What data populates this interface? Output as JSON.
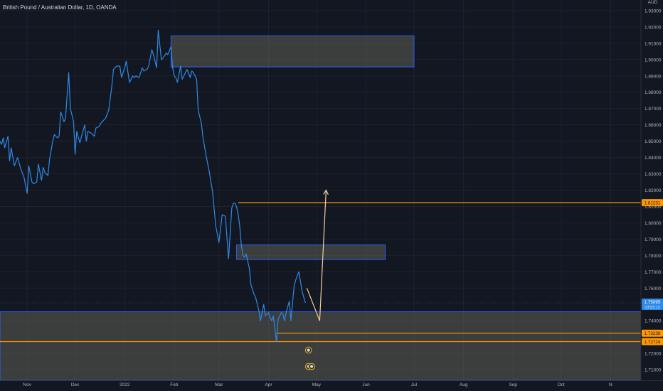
{
  "header": {
    "symbol_title": "British Pound / Australian Dollar, 1D, OANDA",
    "currency_label": "AUD"
  },
  "colors": {
    "background": "#131722",
    "grid": "#1e2230",
    "price_line": "#2f8ae5",
    "zone_border": "#2962ff",
    "zone_fill": "#8a8370",
    "level_line": "#ff9800",
    "projection_arrow": "#f0d29a",
    "axis_text": "#b2b5be",
    "current_price_bg": "#2f8ae5"
  },
  "chart_data": {
    "type": "line",
    "title": "British Pound / Australian Dollar, 1D, OANDA",
    "xlabel": "",
    "ylabel": "",
    "xlim": [
      "2021-10-15",
      "2022-11-20"
    ],
    "ylim": [
      1.7035,
      1.9365
    ],
    "x_ticks": [
      {
        "date": "2021-11-01",
        "label": "Nov"
      },
      {
        "date": "2021-12-01",
        "label": "Dec"
      },
      {
        "date": "2022-01-01",
        "label": "2022"
      },
      {
        "date": "2022-02-01",
        "label": "Feb"
      },
      {
        "date": "2022-03-01",
        "label": "Mar"
      },
      {
        "date": "2022-04-01",
        "label": "Apr"
      },
      {
        "date": "2022-05-01",
        "label": "May"
      },
      {
        "date": "2022-06-01",
        "label": "Jun"
      },
      {
        "date": "2022-07-01",
        "label": "Jul"
      },
      {
        "date": "2022-08-01",
        "label": "Aug"
      },
      {
        "date": "2022-09-01",
        "label": "Sep"
      },
      {
        "date": "2022-10-01",
        "label": "Oct"
      },
      {
        "date": "2022-11-01",
        "label": "N"
      }
    ],
    "y_ticks": [
      {
        "value": 1.93,
        "label": "1.93000"
      },
      {
        "value": 1.92,
        "label": "1.92000"
      },
      {
        "value": 1.91,
        "label": "1.91000"
      },
      {
        "value": 1.9,
        "label": "1.90000"
      },
      {
        "value": 1.89,
        "label": "1.89000"
      },
      {
        "value": 1.88,
        "label": "1.88000"
      },
      {
        "value": 1.87,
        "label": "1.87000"
      },
      {
        "value": 1.86,
        "label": "1.86000"
      },
      {
        "value": 1.85,
        "label": "1.85000"
      },
      {
        "value": 1.84,
        "label": "1.84000"
      },
      {
        "value": 1.83,
        "label": "1.83000"
      },
      {
        "value": 1.82,
        "label": "1.82000"
      },
      {
        "value": 1.81,
        "label": "1.81000"
      },
      {
        "value": 1.8,
        "label": "1.80000"
      },
      {
        "value": 1.79,
        "label": "1.79000"
      },
      {
        "value": 1.78,
        "label": "1.78000"
      },
      {
        "value": 1.77,
        "label": "1.77000"
      },
      {
        "value": 1.76,
        "label": "1.76000"
      },
      {
        "value": 1.74,
        "label": "1.74000"
      },
      {
        "value": 1.72,
        "label": "1.72000"
      },
      {
        "value": 1.71,
        "label": "1.71000"
      }
    ],
    "grid": true,
    "series": [
      {
        "x": [
          "2021-10-15",
          "2021-10-16",
          "2021-10-17",
          "2021-10-18",
          "2021-10-20",
          "2021-10-21",
          "2021-10-22",
          "2021-10-24",
          "2021-10-26",
          "2021-10-28",
          "2021-10-30",
          "2021-11-01",
          "2021-11-02",
          "2021-11-04",
          "2021-11-05",
          "2021-11-07",
          "2021-11-08",
          "2021-11-10",
          "2021-11-11",
          "2021-11-12",
          "2021-11-14",
          "2021-11-15",
          "2021-11-17",
          "2021-11-18",
          "2021-11-20",
          "2021-11-21",
          "2021-11-22",
          "2021-11-24",
          "2021-11-25",
          "2021-11-27",
          "2021-11-28",
          "2021-11-30",
          "2021-12-01",
          "2021-12-02",
          "2021-12-04",
          "2021-12-05",
          "2021-12-07",
          "2021-12-08",
          "2021-12-09",
          "2021-12-11",
          "2021-12-13",
          "2021-12-14",
          "2021-12-16",
          "2021-12-17",
          "2021-12-19",
          "2021-12-20",
          "2021-12-22",
          "2021-12-24",
          "2021-12-25",
          "2021-12-27",
          "2021-12-29",
          "2021-12-30",
          "2022-01-01",
          "2022-01-02",
          "2022-01-04",
          "2022-01-06",
          "2022-01-07",
          "2022-01-08",
          "2022-01-10",
          "2022-01-12",
          "2022-01-13",
          "2022-01-15",
          "2022-01-16",
          "2022-01-18",
          "2022-01-19",
          "2022-01-21",
          "2022-01-22",
          "2022-01-24",
          "2022-01-25",
          "2022-01-27",
          "2022-01-28",
          "2022-01-30",
          "2022-01-31",
          "2022-02-01",
          "2022-02-02",
          "2022-02-03",
          "2022-02-05",
          "2022-02-06",
          "2022-02-08",
          "2022-02-09",
          "2022-02-11",
          "2022-02-12",
          "2022-02-13",
          "2022-02-15",
          "2022-02-16",
          "2022-02-18",
          "2022-02-19",
          "2022-02-21",
          "2022-02-23",
          "2022-02-25",
          "2022-02-27",
          "2022-03-01",
          "2022-03-03",
          "2022-03-05",
          "2022-03-07",
          "2022-03-09",
          "2022-03-10",
          "2022-03-11",
          "2022-03-12",
          "2022-03-13",
          "2022-03-14",
          "2022-03-15",
          "2022-03-16",
          "2022-03-17",
          "2022-03-18",
          "2022-03-20",
          "2022-03-21",
          "2022-03-23",
          "2022-03-24",
          "2022-03-26",
          "2022-03-27",
          "2022-03-29",
          "2022-03-30",
          "2022-04-01",
          "2022-04-02",
          "2022-04-03",
          "2022-04-04",
          "2022-04-06",
          "2022-04-07",
          "2022-04-09",
          "2022-04-10",
          "2022-04-11",
          "2022-04-12",
          "2022-04-14",
          "2022-04-15",
          "2022-04-17",
          "2022-04-18",
          "2022-04-20",
          "2022-04-21",
          "2022-04-22",
          "2022-04-24"
        ],
        "values": [
          1.85,
          1.848,
          1.852,
          1.846,
          1.853,
          1.838,
          1.846,
          1.835,
          1.84,
          1.833,
          1.828,
          1.818,
          1.835,
          1.825,
          1.824,
          1.825,
          1.836,
          1.826,
          1.834,
          1.831,
          1.829,
          1.839,
          1.85,
          1.854,
          1.852,
          1.853,
          1.868,
          1.862,
          1.864,
          1.892,
          1.87,
          1.862,
          1.842,
          1.856,
          1.849,
          1.853,
          1.86,
          1.85,
          1.856,
          1.855,
          1.853,
          1.858,
          1.859,
          1.861,
          1.863,
          1.864,
          1.869,
          1.884,
          1.894,
          1.896,
          1.896,
          1.889,
          1.895,
          1.899,
          1.886,
          1.89,
          1.889,
          1.89,
          1.889,
          1.895,
          1.893,
          1.894,
          1.896,
          1.906,
          1.903,
          1.895,
          1.918,
          1.9,
          1.901,
          1.904,
          1.903,
          1.908,
          1.895,
          1.89,
          1.889,
          1.886,
          1.896,
          1.888,
          1.892,
          1.894,
          1.889,
          1.893,
          1.892,
          1.888,
          1.869,
          1.861,
          1.852,
          1.841,
          1.831,
          1.819,
          1.798,
          1.788,
          1.805,
          1.804,
          1.778,
          1.809,
          1.812,
          1.812,
          1.81,
          1.805,
          1.798,
          1.786,
          1.78,
          1.779,
          1.781,
          1.772,
          1.762,
          1.756,
          1.754,
          1.746,
          1.74,
          1.75,
          1.743,
          1.745,
          1.742,
          1.74,
          1.743,
          1.727,
          1.741,
          1.745,
          1.744,
          1.74,
          1.745,
          1.752,
          1.74,
          1.761,
          1.765,
          1.77,
          1.764,
          1.758,
          1.751
        ]
      }
    ],
    "zones": [
      {
        "x_start": "2022-01-30",
        "x_end": "2022-07-01",
        "y_top": 1.9145,
        "y_bottom": 1.8955
      },
      {
        "x_start": "2022-03-12",
        "x_end": "2022-06-13",
        "y_top": 1.7865,
        "y_bottom": 1.7775
      },
      {
        "x_start": "2021-10-15",
        "x_end": "2022-11-20",
        "y_top": 1.7455,
        "y_bottom": 1.7035
      }
    ],
    "levels": [
      {
        "value": 1.81231,
        "label": "1.81231",
        "x_start": "2022-03-13"
      },
      {
        "value": 1.73238,
        "label": "1.73238",
        "x_start": "2022-04-06"
      },
      {
        "value": 1.72724,
        "label": "1.72724",
        "x_start": "2021-10-15"
      }
    ],
    "current_price": {
      "value": 1.75095,
      "label": "1.75095",
      "countdown": "03:53:12"
    },
    "projection": [
      {
        "date": "2022-04-25",
        "value": 1.76
      },
      {
        "date": "2022-05-03",
        "value": 1.74
      },
      {
        "date": "2022-05-07",
        "value": 1.82
      }
    ],
    "event_markers": [
      {
        "date": "2022-04-26",
        "value": 1.722
      },
      {
        "date": "2022-04-26",
        "value": 1.712
      },
      {
        "date": "2022-04-28",
        "value": 1.712
      }
    ]
  }
}
